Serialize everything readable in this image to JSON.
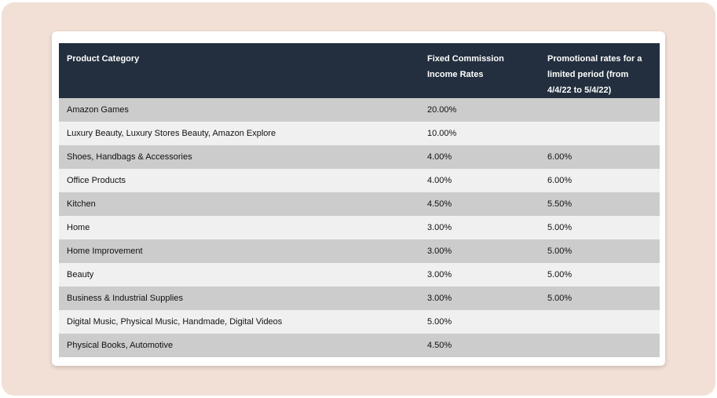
{
  "table": {
    "headers": [
      "Product Category",
      "Fixed Commission Income Rates",
      "Promotional rates for a limited period (from 4/4/22 to 5/4/22)"
    ],
    "rows": [
      [
        "Amazon Games",
        "20.00%",
        ""
      ],
      [
        "Luxury Beauty, Luxury Stores Beauty, Amazon Explore",
        "10.00%",
        ""
      ],
      [
        "Shoes, Handbags & Accessories",
        "4.00%",
        "6.00%"
      ],
      [
        "Office Products",
        "4.00%",
        "6.00%"
      ],
      [
        "Kitchen",
        "4.50%",
        "5.50%"
      ],
      [
        "Home",
        "3.00%",
        "5.00%"
      ],
      [
        "Home Improvement",
        "3.00%",
        "5.00%"
      ],
      [
        "Beauty",
        "3.00%",
        "5.00%"
      ],
      [
        "Business & Industrial Supplies",
        "3.00%",
        "5.00%"
      ],
      [
        "Digital Music, Physical Music, Handmade, Digital Videos",
        "5.00%",
        ""
      ],
      [
        "Physical Books, Automotive",
        "4.50%",
        ""
      ]
    ]
  },
  "colors": {
    "backdrop": "#f2e0d6",
    "header_bg": "#232f3e",
    "row_odd": "#cccccc",
    "row_even": "#f0f0f0"
  }
}
